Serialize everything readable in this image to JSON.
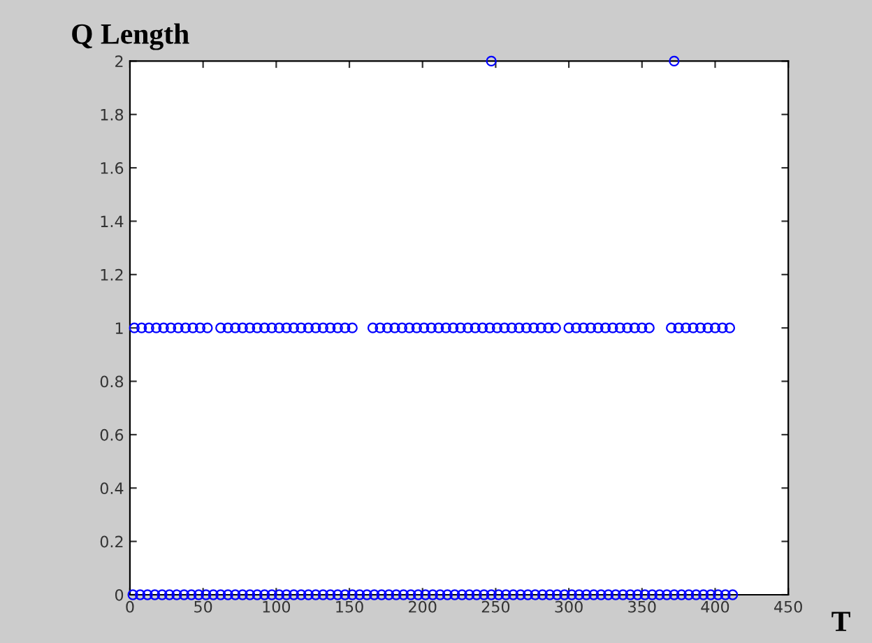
{
  "chart_data": {
    "type": "scatter",
    "title": "Q Length",
    "xlabel": "T",
    "xlim": [
      0,
      450
    ],
    "xticks": [
      0,
      50,
      100,
      150,
      200,
      250,
      300,
      350,
      400,
      450
    ],
    "ylim": [
      0,
      2
    ],
    "yticks": [
      0,
      0.2,
      0.4,
      0.6,
      0.8,
      1,
      1.2,
      1.4,
      1.6,
      1.8,
      2
    ],
    "marker": "circle",
    "grid": false,
    "series": [
      {
        "color": "#0000ff",
        "x": [
          3,
          8,
          13,
          18,
          23,
          28,
          33,
          38,
          43,
          48,
          53,
          62,
          67,
          72,
          77,
          82,
          87,
          92,
          97,
          102,
          107,
          112,
          117,
          122,
          127,
          132,
          137,
          142,
          147,
          152,
          166,
          171,
          176,
          181,
          186,
          191,
          196,
          201,
          206,
          211,
          216,
          221,
          226,
          231,
          236,
          241,
          246,
          251,
          256,
          261,
          266,
          271,
          276,
          281,
          286,
          291,
          300,
          305,
          310,
          315,
          320,
          325,
          330,
          335,
          340,
          345,
          350,
          355,
          370,
          375,
          380,
          385,
          390,
          395,
          400,
          405,
          410
        ],
        "values": [
          1,
          1,
          1,
          1,
          1,
          1,
          1,
          1,
          1,
          1,
          1,
          1,
          1,
          1,
          1,
          1,
          1,
          1,
          1,
          1,
          1,
          1,
          1,
          1,
          1,
          1,
          1,
          1,
          1,
          1,
          1,
          1,
          1,
          1,
          1,
          1,
          1,
          1,
          1,
          1,
          1,
          1,
          1,
          1,
          1,
          1,
          1,
          1,
          1,
          1,
          1,
          1,
          1,
          1,
          1,
          1,
          1,
          1,
          1,
          1,
          1,
          1,
          1,
          1,
          1,
          1,
          1,
          1,
          1,
          1,
          1,
          1,
          1,
          1,
          1,
          1,
          1
        ]
      },
      {
        "color": "#0000ff",
        "x": [
          2,
          7,
          12,
          17,
          22,
          27,
          32,
          37,
          42,
          47,
          52,
          57,
          62,
          67,
          72,
          77,
          82,
          87,
          92,
          97,
          102,
          107,
          112,
          117,
          122,
          127,
          132,
          137,
          142,
          147,
          152,
          157,
          162,
          167,
          172,
          177,
          182,
          187,
          192,
          197,
          202,
          207,
          212,
          217,
          222,
          227,
          232,
          237,
          242,
          247,
          252,
          257,
          262,
          267,
          272,
          277,
          282,
          287,
          292,
          297,
          302,
          307,
          312,
          317,
          322,
          327,
          332,
          337,
          342,
          347,
          352,
          357,
          362,
          367,
          372,
          377,
          382,
          387,
          392,
          397,
          402,
          407,
          412
        ],
        "values": [
          0,
          0,
          0,
          0,
          0,
          0,
          0,
          0,
          0,
          0,
          0,
          0,
          0,
          0,
          0,
          0,
          0,
          0,
          0,
          0,
          0,
          0,
          0,
          0,
          0,
          0,
          0,
          0,
          0,
          0,
          0,
          0,
          0,
          0,
          0,
          0,
          0,
          0,
          0,
          0,
          0,
          0,
          0,
          0,
          0,
          0,
          0,
          0,
          0,
          0,
          0,
          0,
          0,
          0,
          0,
          0,
          0,
          0,
          0,
          0,
          0,
          0,
          0,
          0,
          0,
          0,
          0,
          0,
          0,
          0,
          0,
          0,
          0,
          0,
          0,
          0,
          0,
          0,
          0,
          0,
          0,
          0,
          0
        ]
      },
      {
        "color": "#0000ff",
        "x": [
          247,
          372
        ],
        "values": [
          2,
          2
        ]
      }
    ]
  }
}
